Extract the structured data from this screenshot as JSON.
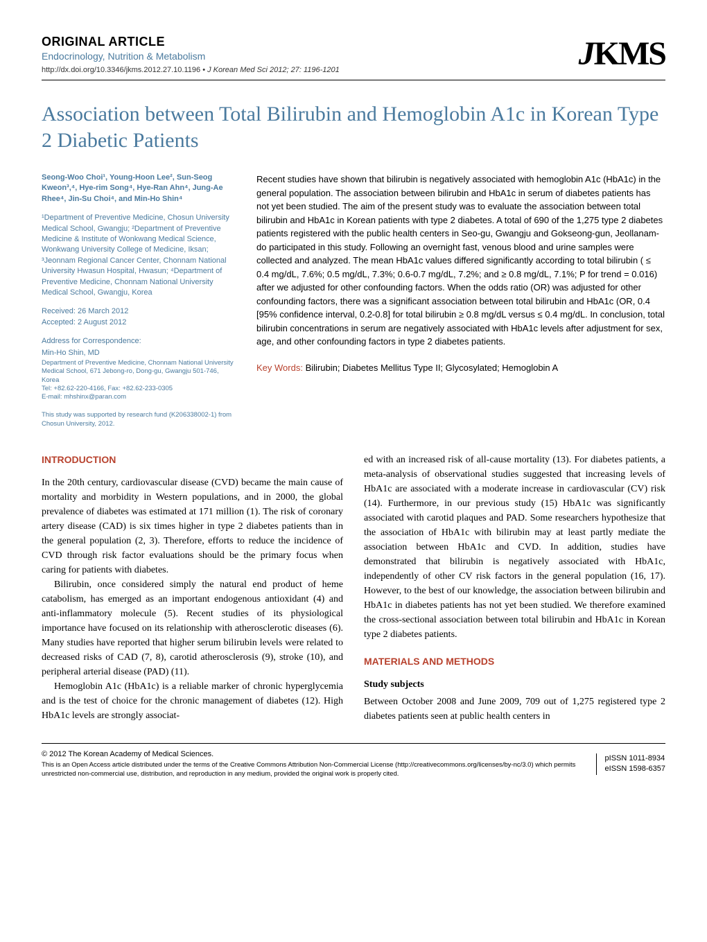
{
  "colors": {
    "accent_blue": "#4a7a9e",
    "accent_red": "#b8422e",
    "text": "#000000",
    "background": "#ffffff"
  },
  "header": {
    "article_type": "ORIGINAL ARTICLE",
    "subject": "Endocrinology, Nutrition & Metabolism",
    "logo": "JKMS",
    "doi": "http://dx.doi.org/10.3346/jkms.2012.27.10.1196",
    "citation": "J Korean Med Sci 2012; 27: 1196-1201"
  },
  "title": "Association between Total Bilirubin and Hemoglobin A1c in Korean Type 2 Diabetic Patients",
  "authors": "Seong-Woo Choi¹, Young-Hoon Lee², Sun-Seog Kweon³,⁴, Hye-rim Song⁴, Hye-Ran Ahn⁴, Jung-Ae Rhee⁴, Jin-Su Choi⁴, and Min-Ho Shin⁴",
  "affiliations": "¹Department of Preventive Medicine, Chosun University Medical School, Gwangju; ²Department of Preventive Medicine & Institute of Wonkwang Medical Science, Wonkwang University College of Medicine, Iksan; ³Jeonnam Regional Cancer Center, Chonnam National University Hwasun Hospital, Hwasun; ⁴Department of Preventive Medicine, Chonnam National University Medical School, Gwangju, Korea",
  "received": "Received: 26 March 2012",
  "accepted": "Accepted: 2 August 2012",
  "correspondence": {
    "heading": "Address for Correspondence:",
    "name": "Min-Ho Shin, MD",
    "detail": "Department of Preventive Medicine, Chonnam National University Medical School, 671 Jebong-ro, Dong-gu, Gwangju 501-746, Korea",
    "tel": "Tel: +82.62-220-4166, Fax: +82.62-233-0305",
    "email": "E-mail: mhshinx@paran.com"
  },
  "funding": "This study was supported by research fund (K206338002-1) from Chosun University, 2012.",
  "abstract": "Recent studies have shown that bilirubin is negatively associated with hemoglobin A1c (HbA1c) in the general population. The association between bilirubin and HbA1c in serum of diabetes patients has not yet been studied. The aim of the present study was to evaluate the association between total bilirubin and HbA1c in Korean patients with type 2 diabetes. A total of 690 of the 1,275 type 2 diabetes patients registered with the public health centers in Seo-gu, Gwangju and Gokseong-gun, Jeollanam-do participated in this study. Following an overnight fast, venous blood and urine samples were collected and analyzed. The mean HbA1c values differed significantly according to total bilirubin ( ≤ 0.4 mg/dL, 7.6%; 0.5 mg/dL, 7.3%; 0.6-0.7 mg/dL, 7.2%; and ≥ 0.8 mg/dL, 7.1%; P for trend = 0.016) after we adjusted for other confounding factors. When the odds ratio (OR) was adjusted for other confounding factors, there was a significant association between total bilirubin and HbA1c (OR, 0.4 [95% confidence interval, 0.2-0.8] for total bilirubin ≥ 0.8 mg/dL versus ≤ 0.4 mg/dL. In conclusion, total bilirubin concentrations in serum are negatively associated with HbA1c levels after adjustment for sex, age, and other confounding factors in type 2 diabetes patients.",
  "keywords_label": "Key Words:",
  "keywords": "Bilirubin; Diabetes Mellitus Type II; Glycosylated; Hemoglobin A",
  "sections": {
    "intro_heading": "INTRODUCTION",
    "intro_p1": "In the 20th century, cardiovascular disease (CVD) became the main cause of mortality and morbidity in Western populations, and in 2000, the global prevalence of diabetes was estimated at 171 million (1). The risk of coronary artery disease (CAD) is six times higher in type 2 diabetes patients than in the general population (2, 3). Therefore, efforts to reduce the incidence of CVD through risk factor evaluations should be the primary focus when caring for patients with diabetes.",
    "intro_p2": "Bilirubin, once considered simply the natural end product of heme catabolism, has emerged as an important endogenous antioxidant (4) and anti-inflammatory molecule (5). Recent studies of its physiological importance have focused on its relationship with atherosclerotic diseases (6). Many studies have reported that higher serum bilirubin levels were related to decreased risks of CAD (7, 8), carotid atherosclerosis (9), stroke (10), and peripheral arterial disease (PAD) (11).",
    "intro_p3": "Hemoglobin A1c (HbA1c) is a reliable marker of chronic hyperglycemia and is the test of choice for the chronic management of diabetes (12). High HbA1c levels are strongly associat-",
    "intro_p3_cont": "ed with an increased risk of all-cause mortality (13). For diabetes patients, a meta-analysis of observational studies suggested that increasing levels of HbA1c are associated with a moderate increase in cardiovascular (CV) risk (14). Furthermore, in our previous study (15) HbA1c was significantly associated with carotid plaques and PAD. Some researchers hypothesize that the association of HbA1c with bilirubin may at least partly mediate the association between HbA1c and CVD. In addition, studies have demonstrated that bilirubin is negatively associated with HbA1c, independently of other CV risk factors in the general population (16, 17). However, to the best of our knowledge, the association between bilirubin and HbA1c in diabetes patients has not yet been studied. We therefore examined the cross-sectional association between total bilirubin and HbA1c in Korean type 2 diabetes patients.",
    "methods_heading": "MATERIALS AND METHODS",
    "subjects_heading": "Study subjects",
    "subjects_p1": "Between October 2008 and June 2009, 709 out of 1,275 registered type 2 diabetes patients seen at public health centers in"
  },
  "footer": {
    "copyright": "© 2012 The Korean Academy of Medical Sciences.",
    "license": "This is an Open Access article distributed under the terms of the Creative Commons Attribution Non-Commercial License (http://creativecommons.org/licenses/by-nc/3.0) which permits unrestricted non-commercial use, distribution, and reproduction in any medium, provided the original work is properly cited.",
    "pissn": "pISSN 1011-8934",
    "eissn": "eISSN 1598-6357"
  }
}
